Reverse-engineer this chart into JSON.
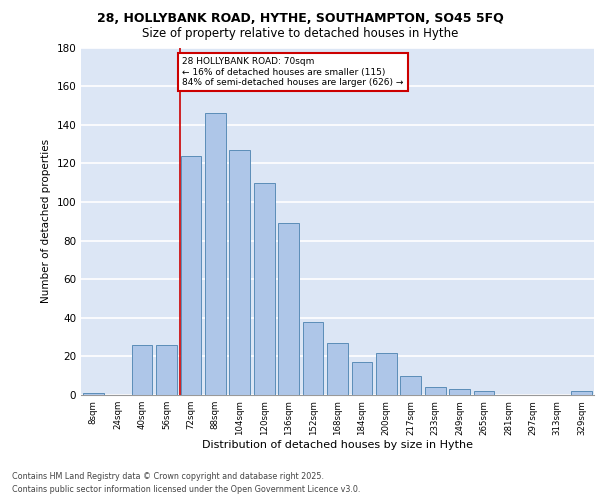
{
  "title_line1": "28, HOLLYBANK ROAD, HYTHE, SOUTHAMPTON, SO45 5FQ",
  "title_line2": "Size of property relative to detached houses in Hythe",
  "xlabel": "Distribution of detached houses by size in Hythe",
  "ylabel": "Number of detached properties",
  "categories": [
    "8sqm",
    "24sqm",
    "40sqm",
    "56sqm",
    "72sqm",
    "88sqm",
    "104sqm",
    "120sqm",
    "136sqm",
    "152sqm",
    "168sqm",
    "184sqm",
    "200sqm",
    "217sqm",
    "233sqm",
    "249sqm",
    "265sqm",
    "281sqm",
    "297sqm",
    "313sqm",
    "329sqm"
  ],
  "values": [
    1,
    0,
    26,
    26,
    124,
    146,
    127,
    110,
    89,
    38,
    27,
    17,
    22,
    10,
    4,
    3,
    2,
    0,
    0,
    0,
    2
  ],
  "bar_color": "#aec6e8",
  "bar_edge_color": "#5b8db8",
  "background_color": "#dce6f5",
  "grid_color": "#ffffff",
  "property_line_color": "#cc0000",
  "annotation_text": "28 HOLLYBANK ROAD: 70sqm\n← 16% of detached houses are smaller (115)\n84% of semi-detached houses are larger (626) →",
  "annotation_box_color": "#ffffff",
  "annotation_box_edge": "#cc0000",
  "footer_line1": "Contains HM Land Registry data © Crown copyright and database right 2025.",
  "footer_line2": "Contains public sector information licensed under the Open Government Licence v3.0.",
  "ylim": [
    0,
    180
  ],
  "yticks": [
    0,
    20,
    40,
    60,
    80,
    100,
    120,
    140,
    160,
    180
  ]
}
